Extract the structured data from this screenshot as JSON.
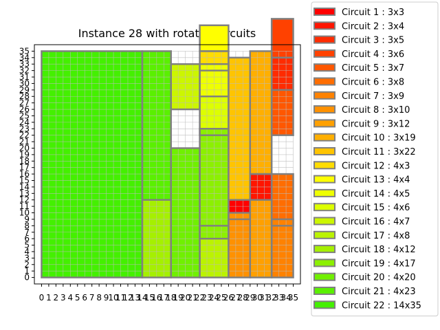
{
  "chart_data": {
    "type": "packing",
    "title": "Instance 28 with rotated circuits",
    "xlabel": "",
    "ylabel": "",
    "xlim": [
      0,
      35
    ],
    "ylim": [
      0,
      35
    ],
    "xticks": [
      0,
      1,
      2,
      3,
      4,
      5,
      6,
      7,
      8,
      9,
      10,
      11,
      12,
      13,
      14,
      15,
      16,
      17,
      18,
      19,
      20,
      21,
      22,
      23,
      24,
      25,
      26,
      27,
      28,
      29,
      30,
      31,
      32,
      33,
      34,
      35
    ],
    "yticks": [
      0,
      1,
      2,
      3,
      4,
      5,
      6,
      7,
      8,
      9,
      10,
      11,
      12,
      13,
      14,
      15,
      16,
      17,
      18,
      19,
      20,
      21,
      22,
      23,
      24,
      25,
      26,
      27,
      28,
      29,
      30,
      31,
      32,
      33,
      34,
      35
    ],
    "grid": true,
    "grid_color": "#bbbbbb",
    "edge_color": "#808080",
    "legend_position": "outside-top-right",
    "legend": [
      "Circuit 1 : 3x3",
      "Circuit 2 : 3x4",
      "Circuit 3 : 3x5",
      "Circuit 4 : 3x6",
      "Circuit 5 : 3x7",
      "Circuit 6 : 3x8",
      "Circuit 7 : 3x9",
      "Circuit 8 : 3x10",
      "Circuit 9 : 3x12",
      "Circuit 10 : 3x19",
      "Circuit 11 : 3x22",
      "Circuit 12 : 4x3",
      "Circuit 13 : 4x4",
      "Circuit 14 : 4x5",
      "Circuit 15 : 4x6",
      "Circuit 16 : 4x7",
      "Circuit 17 : 4x8",
      "Circuit 18 : 4x12",
      "Circuit 19 : 4x17",
      "Circuit 20 : 4x20",
      "Circuit 21 : 4x23",
      "Circuit 22 : 14x35"
    ],
    "circuits": [
      {
        "x": 26,
        "y": 9,
        "w": 3,
        "h": 3,
        "color": "#ff0000"
      },
      {
        "x": 29,
        "y": 12,
        "w": 3,
        "h": 4,
        "color": "#ff1500"
      },
      {
        "x": 32,
        "y": 29,
        "w": 3,
        "h": 5,
        "color": "#ff2b00"
      },
      {
        "x": 32,
        "y": 34,
        "w": 3,
        "h": 6,
        "color": "#ff4100"
      },
      {
        "x": 32,
        "y": 22,
        "w": 3,
        "h": 7,
        "color": "#ff5700"
      },
      {
        "x": 32,
        "y": 8,
        "w": 3,
        "h": 8,
        "color": "#ff6d00"
      },
      {
        "x": 32,
        "y": 0,
        "w": 3,
        "h": 9,
        "color": "#ff8200"
      },
      {
        "x": 26,
        "y": 0,
        "w": 3,
        "h": 10,
        "color": "#ff9100"
      },
      {
        "x": 29,
        "y": 0,
        "w": 3,
        "h": 12,
        "color": "#ffa000"
      },
      {
        "x": 29,
        "y": 16,
        "w": 3,
        "h": 19,
        "color": "#ffaf00"
      },
      {
        "x": 26,
        "y": 12,
        "w": 3,
        "h": 22,
        "color": "#ffc400"
      },
      {
        "x": 22,
        "y": 32,
        "w": 4,
        "h": 3,
        "color": "#ffdd00"
      },
      {
        "x": 22,
        "y": 35,
        "w": 4,
        "h": 4,
        "color": "#ffff00"
      },
      {
        "x": 22,
        "y": 28,
        "w": 4,
        "h": 5,
        "color": "#eeff00"
      },
      {
        "x": 22,
        "y": 22,
        "w": 4,
        "h": 6,
        "color": "#ddff00"
      },
      {
        "x": 18,
        "y": 26,
        "w": 4,
        "h": 7,
        "color": "#ccf600"
      },
      {
        "x": 22,
        "y": 0,
        "w": 4,
        "h": 8,
        "color": "#bbf300"
      },
      {
        "x": 14,
        "y": 0,
        "w": 4,
        "h": 12,
        "color": "#a5f000"
      },
      {
        "x": 22,
        "y": 6,
        "w": 4,
        "h": 17,
        "color": "#8cf000"
      },
      {
        "x": 18,
        "y": 0,
        "w": 4,
        "h": 20,
        "color": "#70f000"
      },
      {
        "x": 14,
        "y": 12,
        "w": 4,
        "h": 23,
        "color": "#5af000"
      },
      {
        "x": 0,
        "y": 0,
        "w": 14,
        "h": 35,
        "color": "#44f000"
      }
    ]
  }
}
